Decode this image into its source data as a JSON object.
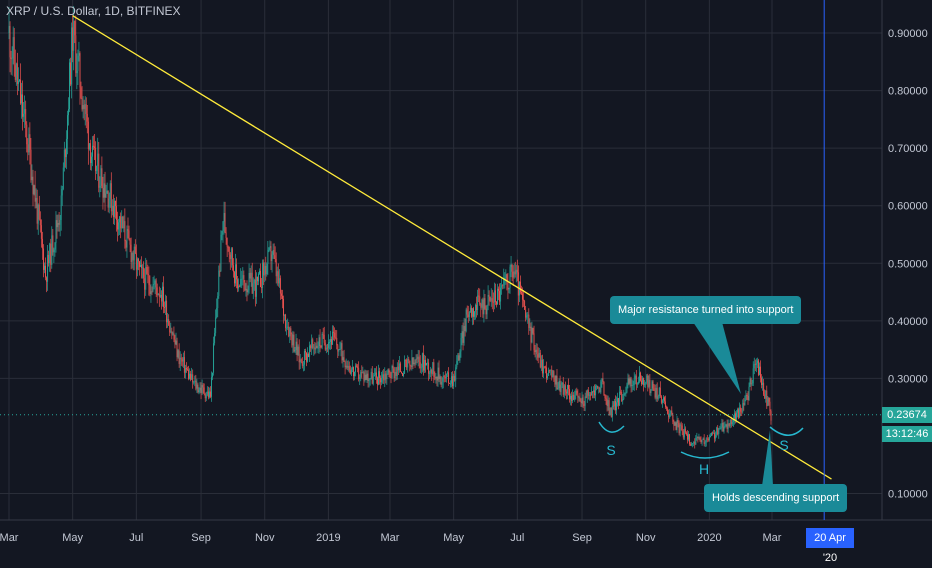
{
  "chart_data": {
    "type": "candlestick",
    "title": "XRP / U.S. Dollar, 1D, BITFINEX",
    "y_axis": {
      "ticks": [
        0.9,
        0.8,
        0.7,
        0.6,
        0.5,
        0.4,
        0.3,
        0.1
      ],
      "tick_labels": [
        "0.90000",
        "0.80000",
        "0.70000",
        "0.60000",
        "0.50000",
        "0.40000",
        "0.30000",
        "0.10000"
      ]
    },
    "x_axis": {
      "ticks": [
        "2018-03-01",
        "2018-05-01",
        "2018-07-01",
        "2018-09-01",
        "2018-11-01",
        "2019-01-01",
        "2019-03-01",
        "2019-05-01",
        "2019-07-01",
        "2019-09-01",
        "2019-11-01",
        "2020-01-01",
        "2020-03-01"
      ],
      "tick_labels": [
        "Mar",
        "May",
        "Jul",
        "Sep",
        "Nov",
        "2019",
        "Mar",
        "May",
        "Jul",
        "Sep",
        "Nov",
        "2020",
        "Mar"
      ]
    },
    "price_path": [
      [
        "2018-03-01",
        0.9
      ],
      [
        "2018-03-20",
        0.7
      ],
      [
        "2018-04-05",
        0.48
      ],
      [
        "2018-04-20",
        0.6
      ],
      [
        "2018-05-01",
        0.9
      ],
      [
        "2018-05-20",
        0.68
      ],
      [
        "2018-06-05",
        0.62
      ],
      [
        "2018-06-20",
        0.55
      ],
      [
        "2018-07-05",
        0.48
      ],
      [
        "2018-07-25",
        0.45
      ],
      [
        "2018-08-10",
        0.34
      ],
      [
        "2018-08-25",
        0.29
      ],
      [
        "2018-09-10",
        0.27
      ],
      [
        "2018-09-22",
        0.58
      ],
      [
        "2018-10-05",
        0.47
      ],
      [
        "2018-10-25",
        0.46
      ],
      [
        "2018-11-08",
        0.52
      ],
      [
        "2018-11-20",
        0.41
      ],
      [
        "2018-12-05",
        0.33
      ],
      [
        "2018-12-20",
        0.36
      ],
      [
        "2019-01-05",
        0.37
      ],
      [
        "2019-01-25",
        0.31
      ],
      [
        "2019-02-15",
        0.3
      ],
      [
        "2019-03-01",
        0.31
      ],
      [
        "2019-04-01",
        0.33
      ],
      [
        "2019-04-20",
        0.3
      ],
      [
        "2019-05-01",
        0.3
      ],
      [
        "2019-05-15",
        0.42
      ],
      [
        "2019-06-01",
        0.43
      ],
      [
        "2019-06-15",
        0.45
      ],
      [
        "2019-06-28",
        0.49
      ],
      [
        "2019-07-10",
        0.4
      ],
      [
        "2019-07-25",
        0.32
      ],
      [
        "2019-08-15",
        0.28
      ],
      [
        "2019-09-01",
        0.26
      ],
      [
        "2019-09-20",
        0.29
      ],
      [
        "2019-09-28",
        0.24
      ],
      [
        "2019-10-15",
        0.29
      ],
      [
        "2019-10-28",
        0.3
      ],
      [
        "2019-11-15",
        0.27
      ],
      [
        "2019-11-30",
        0.22
      ],
      [
        "2019-12-15",
        0.19
      ],
      [
        "2019-12-28",
        0.19
      ],
      [
        "2020-01-10",
        0.21
      ],
      [
        "2020-01-25",
        0.23
      ],
      [
        "2020-02-05",
        0.26
      ],
      [
        "2020-02-15",
        0.33
      ],
      [
        "2020-02-22",
        0.28
      ],
      [
        "2020-02-29",
        0.237
      ]
    ],
    "last_price": "0.23674",
    "countdown": "13:12:46",
    "cursor_date": "20 Apr '20",
    "annotations": {
      "trendline": {
        "from": [
          "2018-05-01",
          0.93
        ],
        "to": [
          "2020-04-27",
          0.125
        ]
      },
      "callouts": [
        "Major resistance turned into support",
        "Holds descending support"
      ],
      "pattern_labels": [
        "S",
        "H",
        "S"
      ]
    },
    "colors": {
      "background": "#131722",
      "grid": "#2a2e39",
      "up": "#26a69a",
      "down": "#ef5350",
      "trendline": "#ffeb3b",
      "annotation": "#1a8a98",
      "cursor": "#2962ff"
    }
  }
}
